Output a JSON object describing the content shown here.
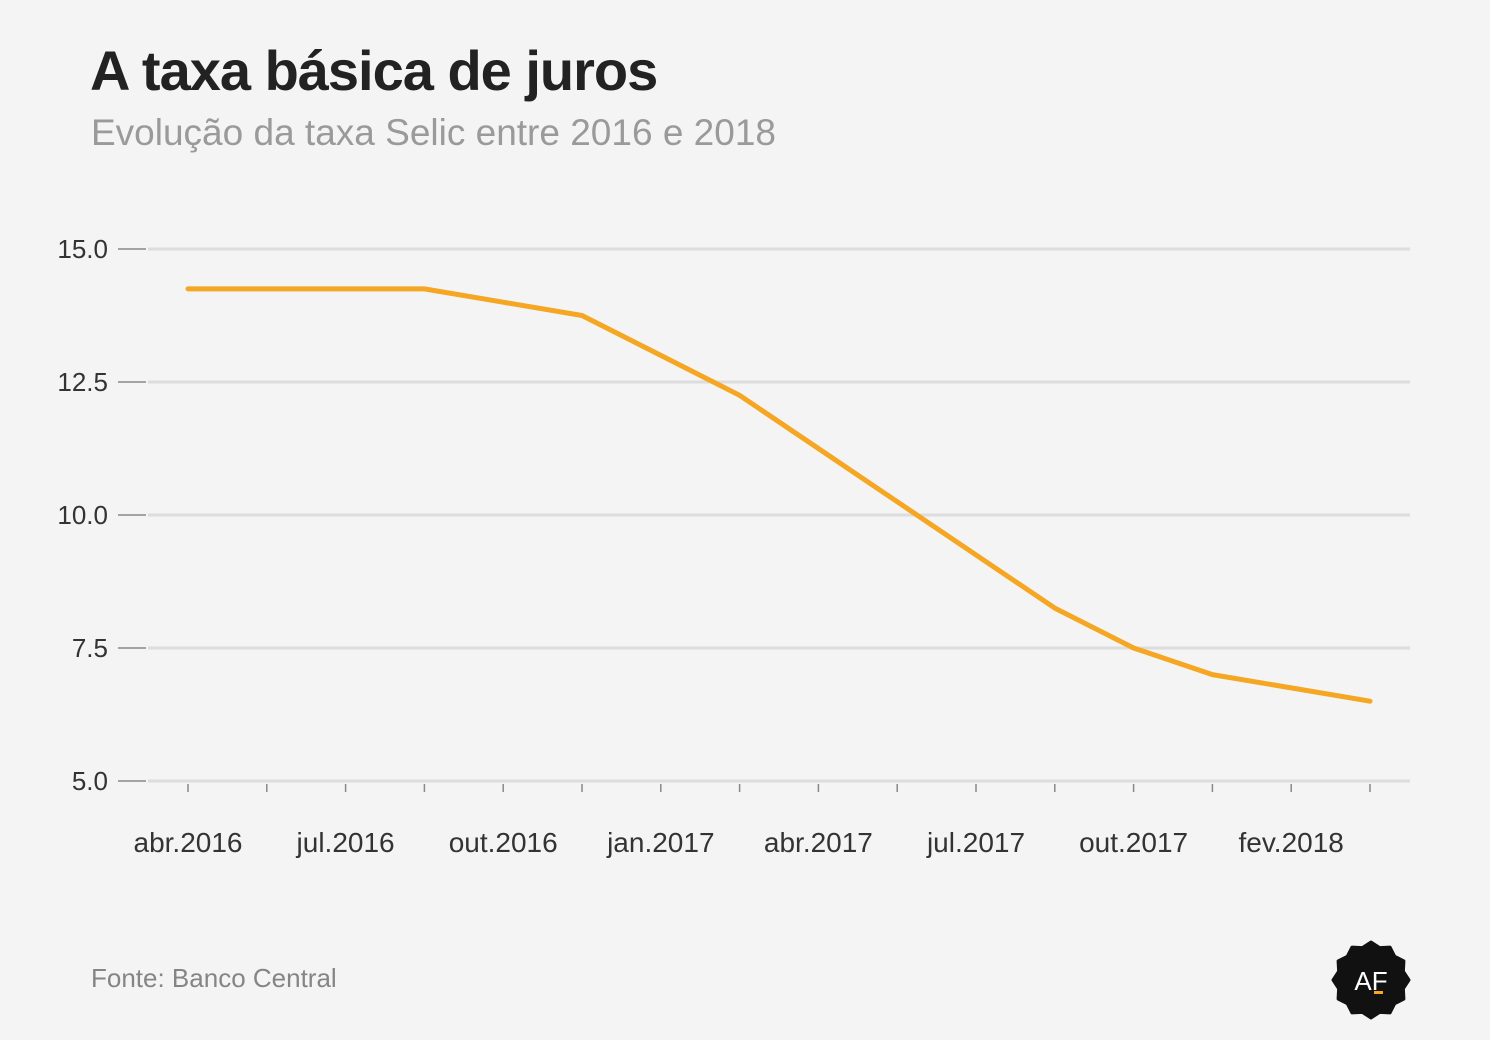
{
  "header": {
    "title": "A taxa básica de juros",
    "subtitle": "Evolução da taxa Selic entre 2016 e 2018"
  },
  "footer": {
    "source": "Fonte: Banco Central",
    "logo_text": "AF"
  },
  "colors": {
    "line": "#f5a623",
    "grid": "#dddddd",
    "axis_text": "#333333",
    "background": "#f4f4f4",
    "logo": "#111111"
  },
  "chart_data": {
    "type": "line",
    "ylim": [
      5.0,
      15.0
    ],
    "yticks": [
      5.0,
      7.5,
      10.0,
      12.5,
      15.0
    ],
    "ytick_labels": [
      "5.0",
      "7.5",
      "10.0",
      "12.5",
      "15.0"
    ],
    "x_ticks_count": 16,
    "x_tick_labels": [
      "abr.2016",
      "jul.2016",
      "out.2016",
      "jan.2017",
      "abr.2017",
      "jul.2017",
      "out.2017",
      "fev.2018"
    ],
    "grid": true,
    "series": [
      {
        "values": [
          14.25,
          14.25,
          14.25,
          14.25,
          14.0,
          13.75,
          13.0,
          12.25,
          11.25,
          10.25,
          9.25,
          8.25,
          7.5,
          7.0,
          6.75,
          6.5
        ]
      }
    ]
  }
}
